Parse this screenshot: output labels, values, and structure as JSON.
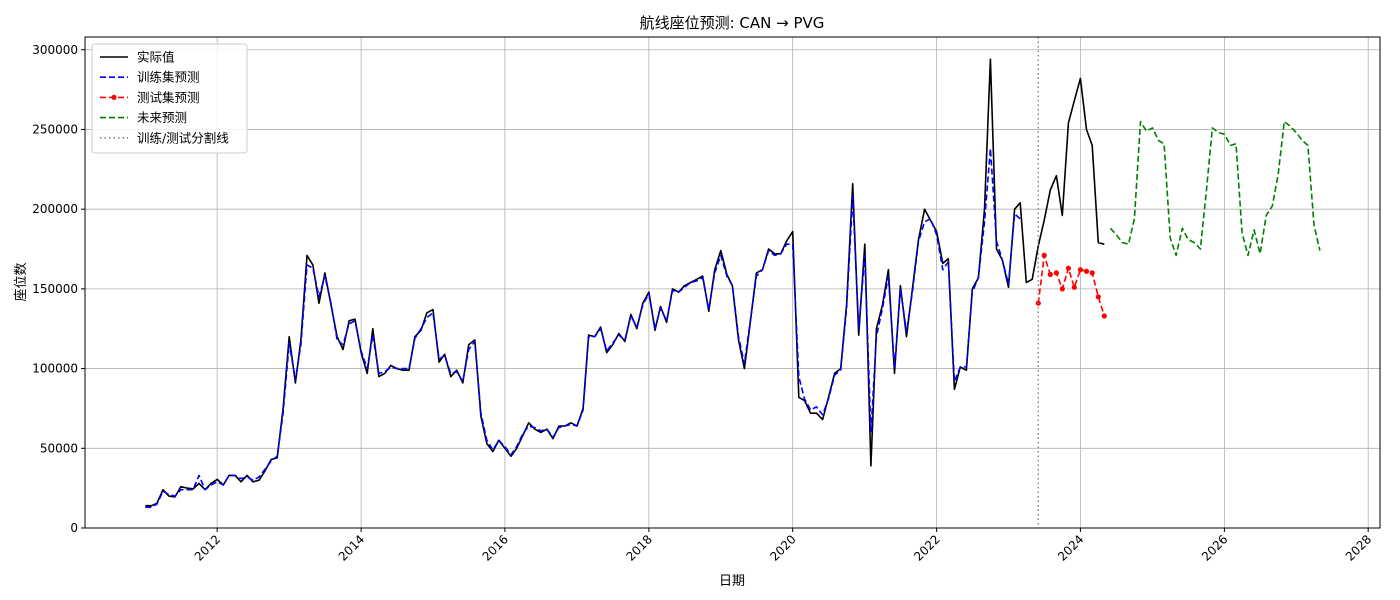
{
  "chart_data": {
    "type": "line",
    "title": "航线座位预测: CAN → PVG",
    "xlabel": "日期",
    "ylabel": "座位数",
    "xlim": [
      "2010-03-01",
      "2028-03-01"
    ],
    "ylim": [
      0,
      308000
    ],
    "x_ticks": [
      "2012",
      "2014",
      "2016",
      "2018",
      "2020",
      "2022",
      "2024",
      "2026",
      "2028"
    ],
    "y_ticks": [
      0,
      50000,
      100000,
      150000,
      200000,
      250000,
      300000
    ],
    "y_tick_labels": [
      "0",
      "50000",
      "100000",
      "150000",
      "200000",
      "250000",
      "300000"
    ],
    "grid": true,
    "legend_position": "top-left",
    "split_date": "2023-06-01",
    "series": [
      {
        "name": "实际值",
        "color": "#000000",
        "style": "solid",
        "start": "2011-01-01",
        "values": [
          14000,
          14000,
          15500,
          24000,
          20000,
          19500,
          26000,
          25000,
          24500,
          28000,
          24000,
          28000,
          30500,
          27000,
          33000,
          33000,
          29000,
          33000,
          29000,
          30000,
          36000,
          43000,
          44000,
          75000,
          120000,
          91000,
          118000,
          171000,
          165000,
          141000,
          160000,
          140000,
          120000,
          112000,
          130000,
          131000,
          110000,
          97000,
          125000,
          95000,
          97000,
          102000,
          100000,
          99000,
          99000,
          120000,
          124000,
          135000,
          137000,
          104000,
          109000,
          95000,
          99000,
          91000,
          115000,
          118000,
          70000,
          53000,
          48000,
          55000,
          50000,
          45000,
          50000,
          58000,
          66000,
          62000,
          60000,
          62000,
          56000,
          64000,
          64000,
          66000,
          64000,
          75000,
          121000,
          120000,
          126000,
          110000,
          115000,
          122000,
          117000,
          134000,
          125000,
          141000,
          148000,
          124000,
          139000,
          129000,
          150000,
          148000,
          152000,
          154000,
          156000,
          158000,
          136000,
          162000,
          174000,
          159000,
          152000,
          118000,
          100000,
          130000,
          160000,
          162000,
          175000,
          172000,
          172000,
          180000,
          186000,
          82000,
          80000,
          72000,
          72000,
          68000,
          82000,
          97000,
          100000,
          140000,
          216000,
          121000,
          178000,
          39000,
          125000,
          140000,
          162000,
          97000,
          152000,
          120000,
          151000,
          181000,
          200000,
          193000,
          186000,
          166000,
          169000,
          87000,
          101000,
          99000,
          150000,
          157000,
          200000,
          294000,
          175000,
          168000,
          151000,
          200000,
          204000,
          154000,
          156000,
          177000,
          193000,
          212000,
          221000,
          196000,
          254000,
          268000,
          282000,
          250000,
          240000,
          179000,
          178000
        ]
      },
      {
        "name": "训练集预测",
        "color": "#0000ff",
        "style": "dashed",
        "start": "2011-01-01",
        "values": [
          13000,
          13000,
          15000,
          23000,
          21000,
          20000,
          24000,
          24000,
          24000,
          33000,
          24000,
          27000,
          29000,
          27000,
          33000,
          33000,
          31000,
          32000,
          30000,
          32000,
          37000,
          42000,
          45000,
          72000,
          116000,
          93000,
          115000,
          165000,
          163000,
          145000,
          158000,
          141000,
          118000,
          115000,
          128000,
          130000,
          111000,
          100000,
          121000,
          97000,
          98000,
          101000,
          100000,
          100000,
          100000,
          119000,
          125000,
          132000,
          135000,
          106000,
          108000,
          97000,
          98000,
          92000,
          112000,
          117000,
          72000,
          55000,
          49000,
          55000,
          51000,
          46000,
          51000,
          59000,
          64000,
          63000,
          61000,
          62000,
          57000,
          63000,
          64000,
          65000,
          64000,
          74000,
          120000,
          120000,
          125000,
          111000,
          116000,
          121000,
          118000,
          133000,
          126000,
          140000,
          147000,
          125000,
          138000,
          130000,
          149000,
          148000,
          151000,
          154000,
          155000,
          157000,
          137000,
          160000,
          171000,
          158000,
          152000,
          120000,
          103000,
          131000,
          158000,
          162000,
          174000,
          171000,
          172000,
          178000,
          178000,
          95000,
          81000,
          74000,
          76000,
          71000,
          81000,
          96000,
          99000,
          138000,
          208000,
          125000,
          171000,
          60000,
          120000,
          138000,
          158000,
          100000,
          150000,
          123000,
          149000,
          180000,
          192000,
          194000,
          184000,
          162000,
          167000,
          92000,
          101000,
          101000,
          148000,
          157000,
          192000,
          238000,
          180000,
          168000,
          153000,
          197000,
          194000
        ]
      },
      {
        "name": "测试集预测",
        "color": "#ff0000",
        "style": "dashed-marker",
        "start": "2023-06-01",
        "values": [
          141000,
          171000,
          159000,
          160000,
          150000,
          163000,
          151000,
          162000,
          161000,
          160000,
          145000,
          133000
        ]
      },
      {
        "name": "未来预测",
        "color": "#008000",
        "style": "dashed",
        "start": "2024-06-01",
        "values": [
          188000,
          184000,
          179000,
          178000,
          194000,
          255000,
          249000,
          251000,
          243000,
          241000,
          182000,
          171000,
          188000,
          181000,
          179000,
          175000,
          211000,
          251000,
          248000,
          247000,
          240000,
          241000,
          185000,
          171000,
          187000,
          172000,
          196000,
          202000,
          222000,
          255000,
          252000,
          248000,
          243000,
          240000,
          190000,
          174000
        ]
      }
    ],
    "split_series_name": "训练/测试分割线",
    "split_color": "#808080"
  }
}
